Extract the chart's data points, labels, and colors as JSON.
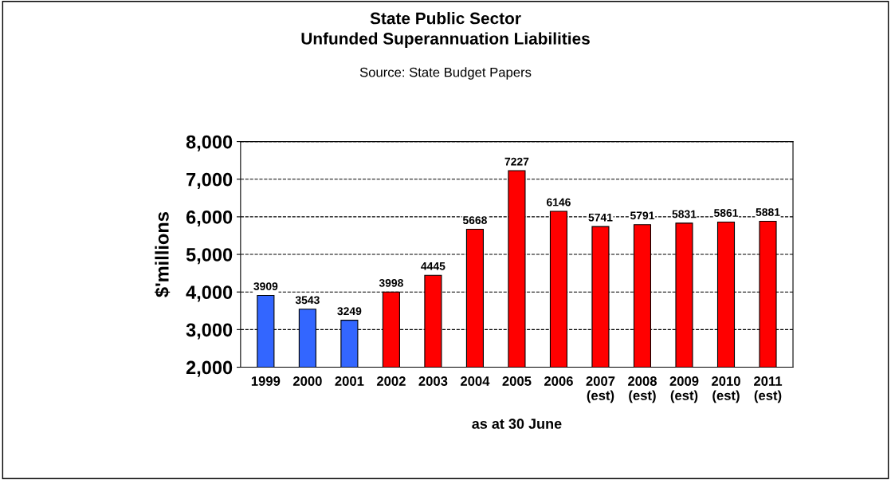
{
  "chart_data": {
    "type": "bar",
    "title": "State Public Sector\nUnfunded Superannuation Liabilities",
    "subtitle": "Source: State Budget Papers",
    "xlabel": "as at 30 June",
    "ylabel": "$'millions",
    "categories": [
      "1999",
      "2000",
      "2001",
      "2002",
      "2003",
      "2004",
      "2005",
      "2006",
      "2007\n(est)",
      "2008\n(est)",
      "2009\n(est)",
      "2010\n(est)",
      "2011\n(est)"
    ],
    "values": [
      3909,
      3543,
      3249,
      3998,
      4445,
      5668,
      7227,
      6146,
      5741,
      5791,
      5831,
      5861,
      5881
    ],
    "colors": [
      "#3366ff",
      "#3366ff",
      "#3366ff",
      "#ff0000",
      "#ff0000",
      "#ff0000",
      "#ff0000",
      "#ff0000",
      "#ff0000",
      "#ff0000",
      "#ff0000",
      "#ff0000",
      "#ff0000"
    ],
    "ylim": [
      2000,
      8000
    ],
    "yticks": [
      {
        "value": 2000,
        "label": "2,000"
      },
      {
        "value": 3000,
        "label": "3,000"
      },
      {
        "value": 4000,
        "label": "4,000"
      },
      {
        "value": 5000,
        "label": "5,000"
      },
      {
        "value": 6000,
        "label": "6,000"
      },
      {
        "value": 7000,
        "label": "7,000"
      },
      {
        "value": 8000,
        "label": "8,000"
      }
    ],
    "grid": "y",
    "data_labels": true
  }
}
